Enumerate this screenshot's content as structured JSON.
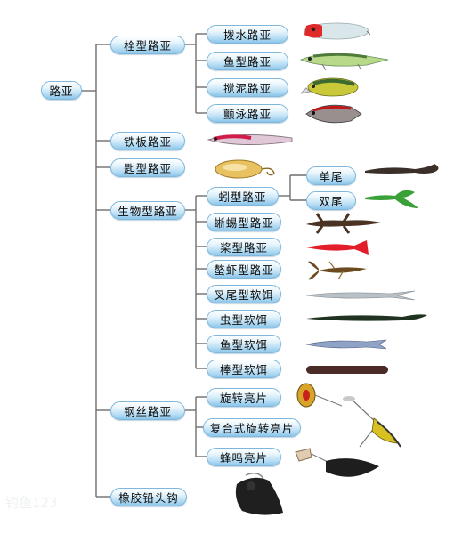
{
  "root": "路亚",
  "nodes": {
    "shuan": "栓型路亚",
    "tieban": "铁板路亚",
    "chi": "匙型路亚",
    "shengwu": "生物型路亚",
    "gangsi": "钢丝路亚",
    "xiangjiao": "橡胶铅头钩",
    "bashui": "拨水路亚",
    "yuxing": "鱼型路亚",
    "jiaoni": "搅泥路亚",
    "dianyong": "颤泳路亚",
    "qiuxing": "蚓型路亚",
    "xiyi": "蜥蜴型路亚",
    "jiang": "桨型路亚",
    "xiaxie": "螯虾型路亚",
    "chawei": "叉尾型软饵",
    "chong": "虫型软饵",
    "yuruan": "鱼型软饵",
    "bang": "棒型软饵",
    "xuanzhuan": "旋转亮片",
    "fuhe": "复合式旋转亮片",
    "fengming": "蜂鸣亮片",
    "danwei": "单尾",
    "shuangwei": "双尾"
  },
  "watermark": "钓鱼123",
  "colors": {
    "line": "#6e6e6e",
    "node_border": "#7fb7dc",
    "node_fill_bottom": "#8cc6ea"
  }
}
